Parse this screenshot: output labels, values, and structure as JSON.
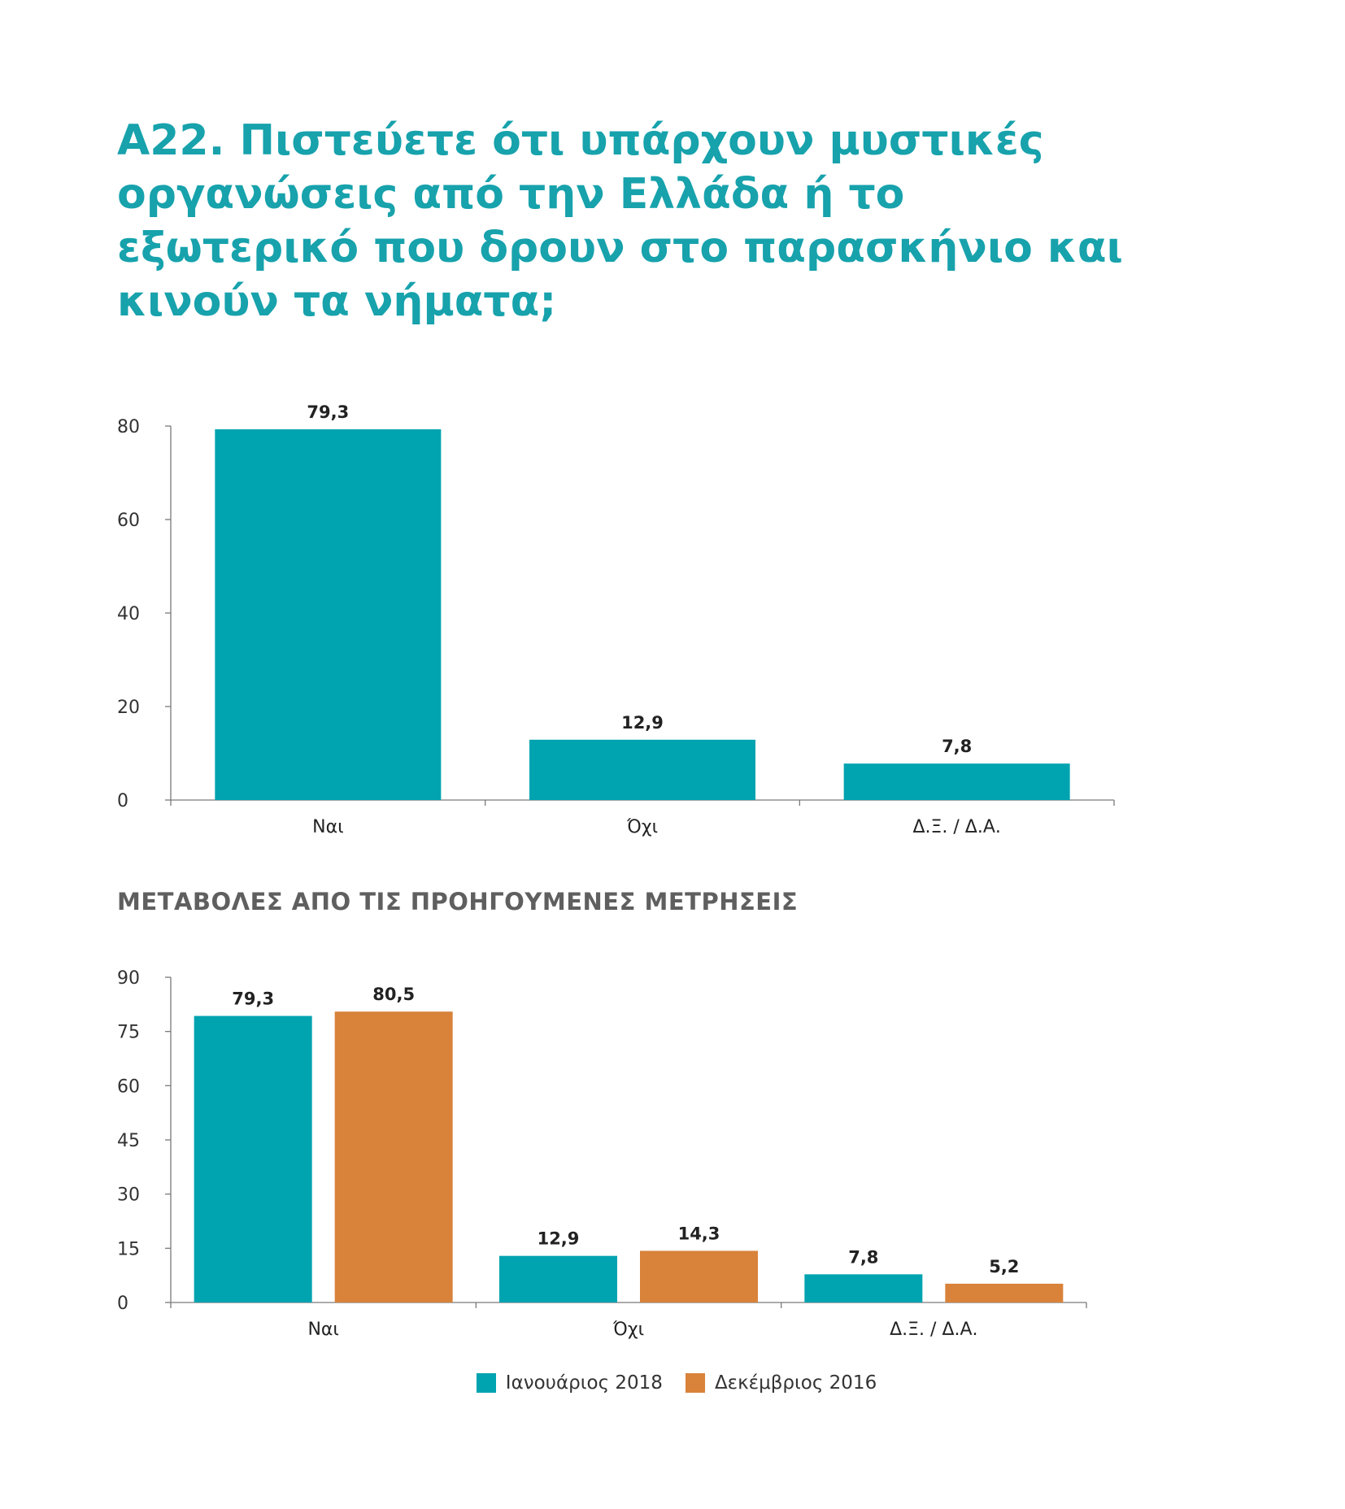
{
  "question_title": "Α22. Πιστεύετε ότι υπάρχουν μυστικές οργανώσεις από την Ελλάδα ή το εξωτερικό που δρουν στο παρασκήνιο και κινούν τα νήματα;",
  "section_title": "ΜΕΤΑΒΟΛΕΣ ΑΠΟ ΤΙΣ ΠΡΟΗΓΟΥΜΕΝΕΣ ΜΕΤΡΗΣΕΙΣ",
  "colors": {
    "title": "#17a2ac",
    "series_2018": "#00a3b0",
    "series_2016": "#d8823a"
  },
  "chart_data": [
    {
      "type": "bar",
      "categories": [
        "Ναι",
        "Όχι",
        "Δ.Ξ. / Δ.Α."
      ],
      "values": [
        79.3,
        12.9,
        7.8
      ],
      "value_labels": [
        "79,3",
        "12,9",
        "7,8"
      ],
      "yticks": [
        0,
        20,
        40,
        60,
        80
      ],
      "ylim": [
        0,
        80
      ],
      "grid": false
    },
    {
      "type": "bar",
      "categories": [
        "Ναι",
        "Όχι",
        "Δ.Ξ. / Δ.Α."
      ],
      "series": [
        {
          "name": "Ιανουάριος 2018",
          "values": [
            79.3,
            12.9,
            7.8
          ],
          "value_labels": [
            "79,3",
            "12,9",
            "7,8"
          ]
        },
        {
          "name": "Δεκέμβριος 2016",
          "values": [
            80.5,
            14.3,
            5.2
          ],
          "value_labels": [
            "80,5",
            "14,3",
            "5,2"
          ]
        }
      ],
      "yticks": [
        0,
        15,
        30,
        45,
        60,
        75,
        90
      ],
      "ylim": [
        0,
        90
      ],
      "grid": false,
      "legend_position": "bottom-center"
    }
  ]
}
